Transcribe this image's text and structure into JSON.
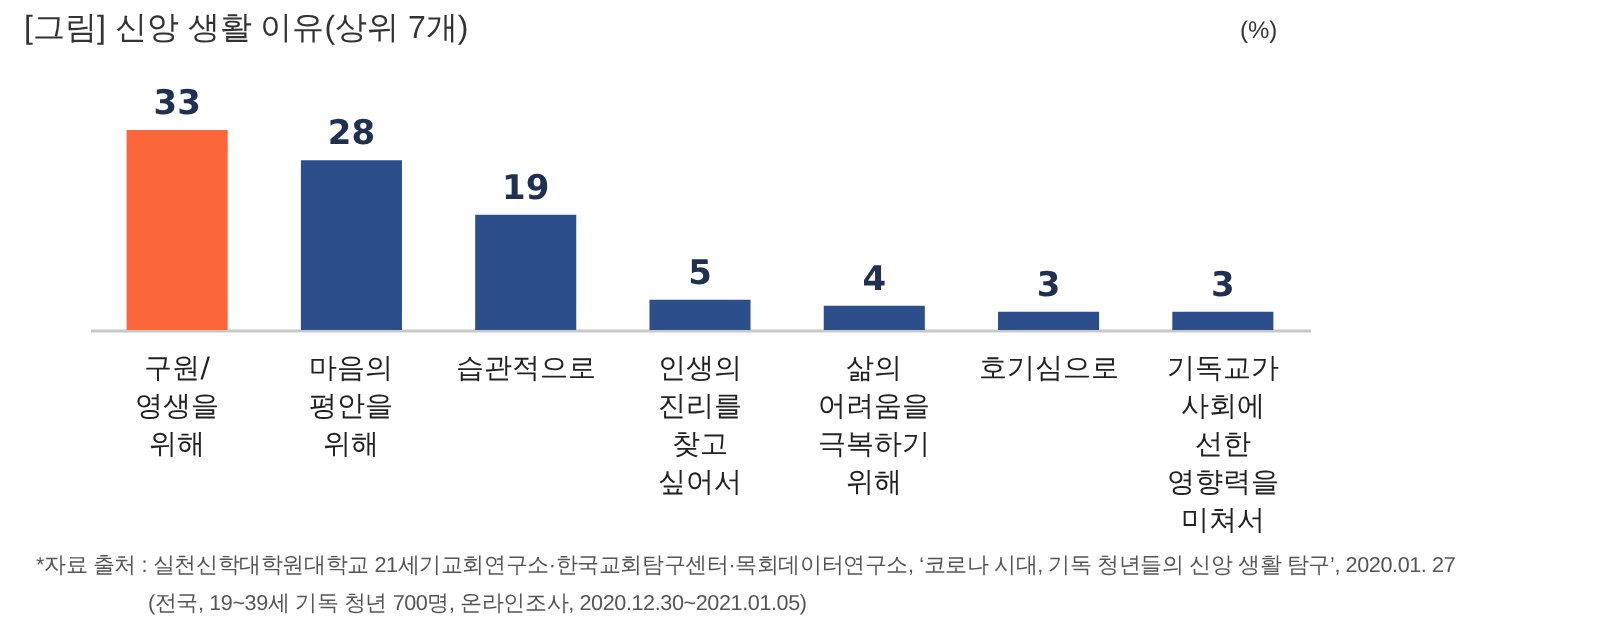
{
  "chart_data": {
    "type": "bar",
    "title": "[그림] 신앙 생활 이유(상위 7개)",
    "ylabel": "(%)",
    "categories": [
      "구원/영생을 위해",
      "마음의 평안을 위해",
      "습관적으로",
      "인생의 진리를 찾고 싶어서",
      "삶의 어려움을 극복하기 위해",
      "호기심으로",
      "기독교가 사회에 선한 영향력을 미쳐서"
    ],
    "values": [
      33,
      28,
      19,
      5,
      4,
      3,
      3
    ],
    "colors": [
      "#fd653a",
      "#2c4f8c",
      "#2c4f8c",
      "#2c4f8c",
      "#2c4f8c",
      "#2c4f8c",
      "#2c4f8c"
    ],
    "data_labels": true,
    "annotations": [
      "*자료 출처 : 실천신학대학원대학교 21세기교회연구소·한국교회탐구센터·목회데이터연구소, ‘코로나 시대, 기독 청년들의 신앙 생활 탐구’, 2020.01. 27",
      "(전국, 19~39세 기독 청년 700명, 온라인조사, 2020.12.30~2021.01.05)"
    ]
  }
}
